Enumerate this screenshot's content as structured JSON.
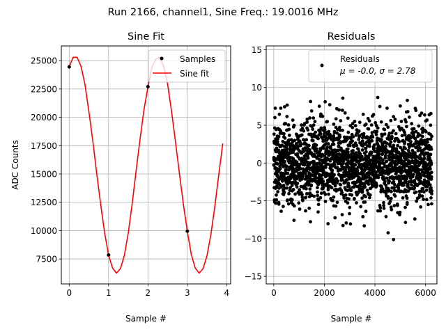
{
  "suptitle": "Run 2166, channel1, Sine Freq.: 19.0016 MHz",
  "chart_data": [
    {
      "type": "line",
      "title": "Sine Fit",
      "xlabel": "Sample #",
      "ylabel": "ADC Counts",
      "xlim": [
        -0.2,
        4.1
      ],
      "ylim": [
        5300,
        26300
      ],
      "xticks": [
        0,
        1,
        2,
        3,
        4
      ],
      "xtick_labels": [
        "0",
        "1",
        "2",
        "3",
        "4"
      ],
      "yticks": [
        7500,
        10000,
        12500,
        15000,
        17500,
        20000,
        22500,
        25000
      ],
      "ytick_labels": [
        "7500",
        "10000",
        "12500",
        "15000",
        "17500",
        "20000",
        "22500",
        "25000"
      ],
      "grid": true,
      "legend_position": "upper right",
      "colors": {
        "samples": "#000000",
        "fit": "#ff0000"
      },
      "series": [
        {
          "name": "Samples",
          "kind": "scatter",
          "x": [
            0,
            1,
            2,
            3
          ],
          "y": [
            24450,
            7850,
            22700,
            9950
          ]
        },
        {
          "name": "Sine fit",
          "kind": "line",
          "x": [
            0,
            0.1,
            0.2,
            0.3,
            0.4,
            0.5,
            0.6,
            0.7,
            0.8,
            0.9,
            1.0,
            1.1,
            1.2,
            1.3,
            1.4,
            1.5,
            1.6,
            1.7,
            1.8,
            1.9,
            2.0,
            2.1,
            2.2,
            2.3,
            2.4,
            2.5,
            2.6,
            2.7,
            2.8,
            2.9,
            3.0,
            3.1,
            3.2,
            3.3,
            3.4,
            3.5,
            3.6,
            3.7,
            3.8,
            3.9
          ],
          "y": [
            24450,
            25300,
            25300,
            24500,
            22900,
            20500,
            17900,
            15000,
            12300,
            9800,
            7850,
            6700,
            6250,
            6650,
            7800,
            9800,
            12400,
            15300,
            18100,
            20700,
            22700,
            24400,
            25150,
            25300,
            24500,
            22900,
            20500,
            17800,
            15000,
            12300,
            9950,
            7900,
            6700,
            6250,
            6650,
            7800,
            9700,
            12200,
            15000,
            17700
          ]
        }
      ]
    },
    {
      "type": "scatter",
      "title": "Residuals",
      "xlabel": "Sample #",
      "ylabel": "",
      "xlim": [
        -300,
        6450
      ],
      "ylim": [
        -16,
        15.5
      ],
      "xticks": [
        0,
        2000,
        4000,
        6000
      ],
      "xtick_labels": [
        "0",
        "2000",
        "4000",
        "6000"
      ],
      "yticks": [
        -15,
        -10,
        -5,
        0,
        5,
        10,
        15
      ],
      "ytick_labels": [
        "−15",
        "−10",
        "−5",
        "0",
        "5",
        "10",
        "15"
      ],
      "grid": true,
      "legend_position": "upper right",
      "legend_label": "Residuals",
      "legend_stats": "μ = -0.0, σ = 2.78",
      "colors": {
        "points": "#000000"
      },
      "series": [
        {
          "name": "Residuals",
          "n_points": 6250,
          "mean": 0.0,
          "std": 2.78,
          "x_range": [
            0,
            6250
          ]
        }
      ]
    }
  ]
}
